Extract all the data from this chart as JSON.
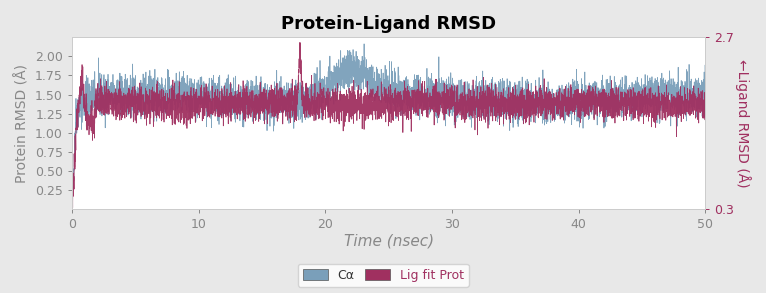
{
  "title": "Protein-Ligand RMSD",
  "xlabel": "Time (nsec)",
  "ylabel_left": "Protein RMSD (Å)",
  "ylabel_right": "←Ligand RMSD (Å)",
  "legend_labels": [
    "Cα",
    "Lig fit Prot"
  ],
  "color_ca": "#7a9fba",
  "color_lig": "#a03060",
  "xlim": [
    0,
    50
  ],
  "ylim_left": [
    0,
    2.25
  ],
  "ylim_right": [
    0.3,
    2.7
  ],
  "yticks_left": [
    0.25,
    0.5,
    0.75,
    1.0,
    1.25,
    1.5,
    1.75,
    2.0
  ],
  "yticks_right": [
    0.3,
    2.7
  ],
  "xticks": [
    0,
    10,
    20,
    30,
    40,
    50
  ],
  "bg_color": "#e8e8e8",
  "plot_bg_color": "#ffffff",
  "title_fontsize": 13,
  "axis_label_fontsize": 10,
  "tick_fontsize": 9,
  "legend_fontsize": 9,
  "n_points": 5000,
  "seed": 42
}
